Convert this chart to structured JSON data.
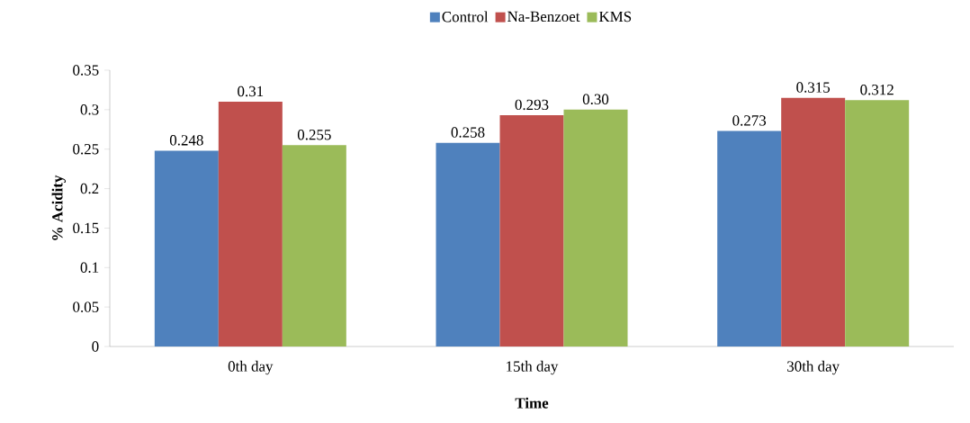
{
  "chart_data": {
    "type": "bar",
    "xlabel": "Time",
    "ylabel": "% Acidity",
    "categories": [
      "0th day",
      "15th day",
      "30th day"
    ],
    "series": [
      {
        "name": "Control",
        "color": "#4f81bd",
        "values": [
          0.248,
          0.258,
          0.273
        ],
        "value_labels": [
          "0.248",
          "0.258",
          "0.273"
        ]
      },
      {
        "name": "Na-Benzoet",
        "color": "#c0504d",
        "values": [
          0.31,
          0.293,
          0.315
        ],
        "value_labels": [
          "0.31",
          "0.293",
          "0.315"
        ]
      },
      {
        "name": "KMS",
        "color": "#9bbb59",
        "values": [
          0.255,
          0.3,
          0.312
        ],
        "value_labels": [
          "0.255",
          "0.30",
          "0.312"
        ]
      }
    ],
    "ylim": [
      0,
      0.35
    ],
    "yticks": [
      0,
      0.05,
      0.1,
      0.15,
      0.2,
      0.25,
      0.3,
      0.35
    ],
    "legend": "top"
  }
}
